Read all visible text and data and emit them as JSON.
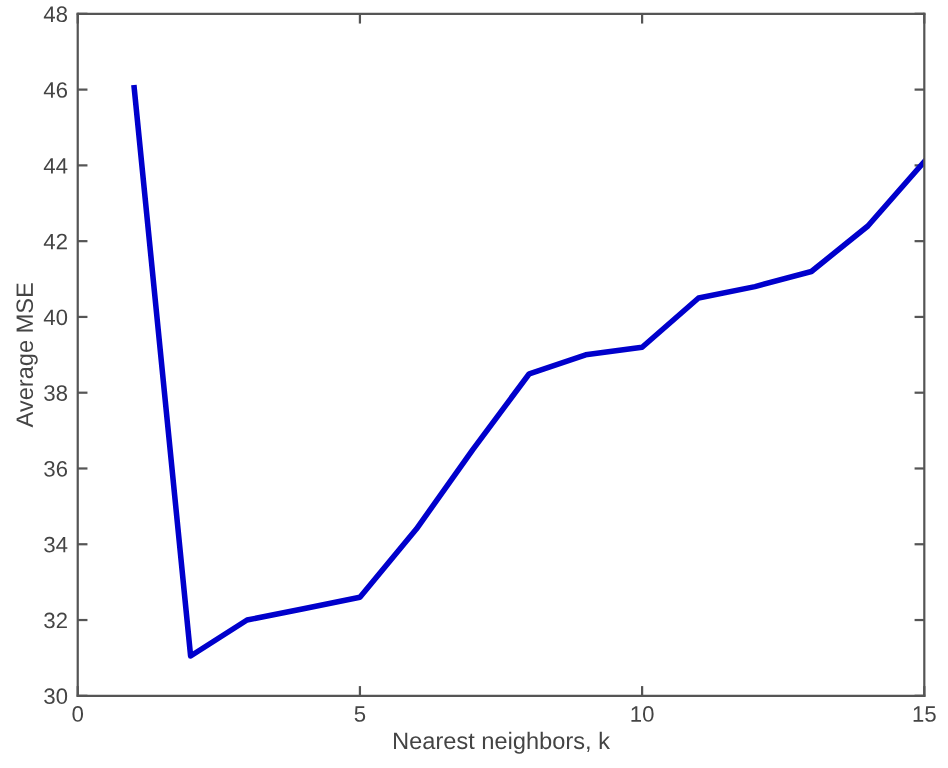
{
  "chart_data": {
    "type": "line",
    "xlabel": "Nearest neighbors, k",
    "ylabel": "Average MSE",
    "x": [
      1,
      2,
      3,
      4,
      5,
      6,
      7,
      8,
      9,
      10,
      11,
      12,
      13,
      14,
      15
    ],
    "series": [
      {
        "color": "#0000cc",
        "values": [
          46.05,
          31.05,
          32.0,
          32.3,
          32.6,
          34.4,
          36.5,
          38.5,
          39.0,
          39.2,
          40.5,
          40.8,
          41.2,
          42.4,
          44.1
        ]
      }
    ],
    "xlim": [
      0,
      15
    ],
    "xticks": [
      0,
      5,
      10,
      15
    ],
    "ylim": [
      30,
      48
    ],
    "yticks": [
      30,
      32,
      34,
      36,
      38,
      40,
      42,
      44,
      46,
      48
    ],
    "grid": false,
    "legend": false,
    "marker": "none",
    "line_style": "solid"
  }
}
